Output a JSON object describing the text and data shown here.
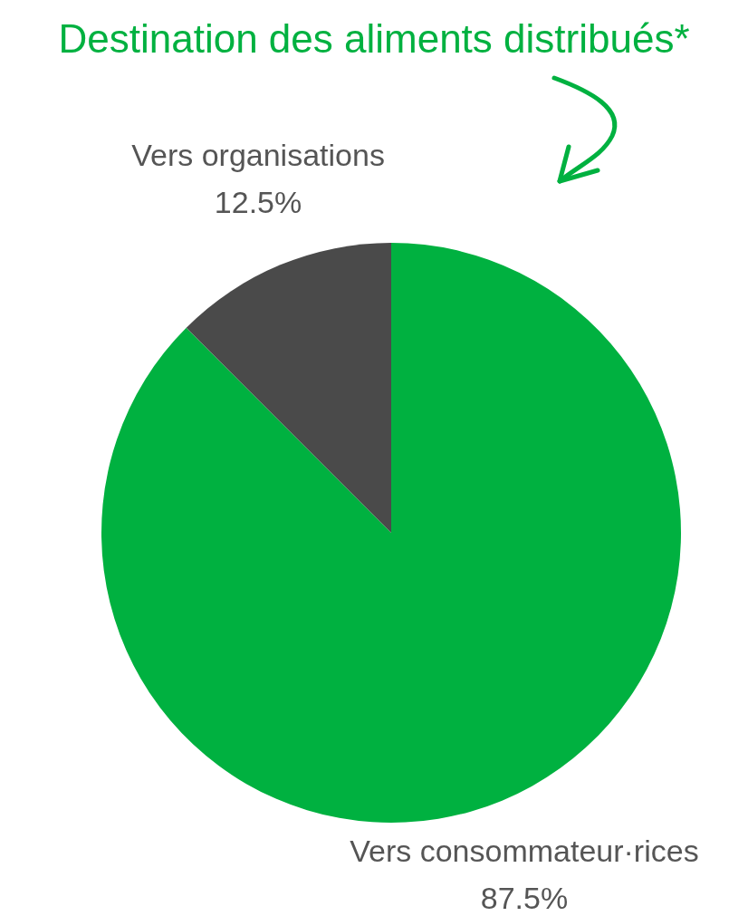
{
  "chart_data": {
    "type": "pie",
    "title": "Destination des aliments distribués*",
    "categories": [
      "Vers consommateur·rices",
      "Vers organisations"
    ],
    "values": [
      87.5,
      12.5
    ],
    "colors": [
      "#00b140",
      "#4a4a4a"
    ],
    "value_labels": [
      "87.5%",
      "12.5%"
    ]
  }
}
